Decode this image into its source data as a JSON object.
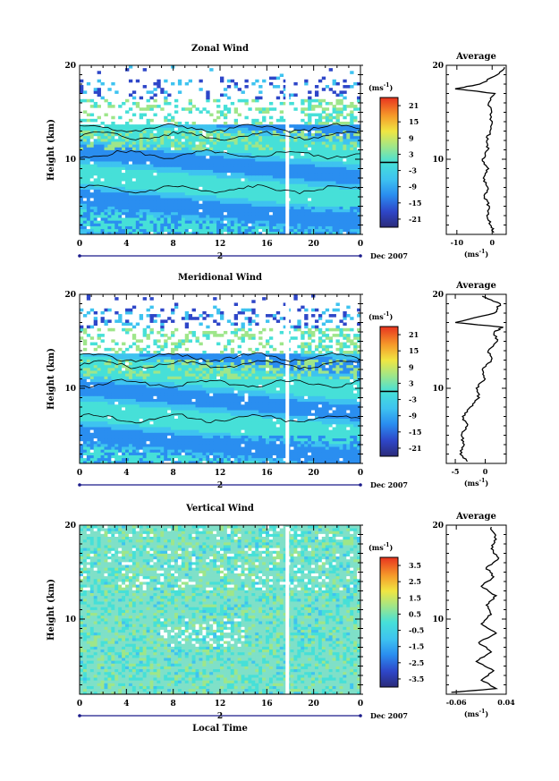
{
  "chart_data": [
    {
      "type": "heatmap",
      "title": "Zonal Wind",
      "ylabel": "Height (km)",
      "ylim": [
        2,
        20
      ],
      "yticks": [
        "20",
        "10"
      ],
      "xticks": [
        "0",
        "4",
        "8",
        "12",
        "16",
        "20",
        "0"
      ],
      "xlim": [
        0,
        24
      ],
      "date_marker": "2",
      "date_label": "Dec 2007",
      "colorbar": {
        "unit": "(ms",
        "unit_exp": "-1",
        "unit_close": ")",
        "ticks": [
          "21",
          "15",
          "9",
          "3",
          "-3",
          "-9",
          "-15",
          "-21"
        ],
        "range": [
          -24,
          24
        ]
      },
      "average": {
        "title": "Average",
        "xticks": [
          "-10",
          "0"
        ],
        "xlim": [
          -13,
          4
        ],
        "xlabel": "(ms",
        "xlabel_exp": "-1",
        "xlabel_close": ")",
        "yticks": [
          "20",
          "10"
        ],
        "profile": [
          {
            "h": 2.2,
            "v": 0.5
          },
          {
            "h": 3,
            "v": -0.5
          },
          {
            "h": 4,
            "v": -1.5
          },
          {
            "h": 5,
            "v": -0.8
          },
          {
            "h": 6,
            "v": -2.2
          },
          {
            "h": 7,
            "v": -1.2
          },
          {
            "h": 8,
            "v": -2.5
          },
          {
            "h": 9,
            "v": -1.0
          },
          {
            "h": 10,
            "v": -2.8
          },
          {
            "h": 11,
            "v": -1.2
          },
          {
            "h": 12,
            "v": -1.5
          },
          {
            "h": 13,
            "v": -0.6
          },
          {
            "h": 14.5,
            "v": -0.2
          },
          {
            "h": 16,
            "v": -1.0
          },
          {
            "h": 17,
            "v": 0.8
          },
          {
            "h": 17.5,
            "v": -10.5
          },
          {
            "h": 18,
            "v": -3.5
          },
          {
            "h": 19,
            "v": 1.5
          },
          {
            "h": 19.8,
            "v": 3.5
          }
        ]
      }
    },
    {
      "type": "heatmap",
      "title": "Meridional Wind",
      "ylabel": "Height (km)",
      "ylim": [
        2,
        20
      ],
      "yticks": [
        "20",
        "10"
      ],
      "xticks": [
        "0",
        "4",
        "8",
        "12",
        "16",
        "20",
        "0"
      ],
      "xlim": [
        0,
        24
      ],
      "date_marker": "2",
      "date_label": "Dec 2007",
      "colorbar": {
        "unit": "(ms",
        "unit_exp": "-1",
        "unit_close": ")",
        "ticks": [
          "21",
          "15",
          "9",
          "3",
          "-3",
          "-9",
          "-15",
          "-21"
        ],
        "range": [
          -24,
          24
        ]
      },
      "average": {
        "title": "Average",
        "xticks": [
          "-5",
          "0"
        ],
        "xlim": [
          -6.5,
          3.5
        ],
        "xlabel": "(ms",
        "xlabel_exp": "-1",
        "xlabel_close": ")",
        "yticks": [
          "20",
          "10"
        ],
        "profile": [
          {
            "h": 2.2,
            "v": -3.0
          },
          {
            "h": 3,
            "v": -4.2
          },
          {
            "h": 4,
            "v": -3.5
          },
          {
            "h": 5,
            "v": -4.0
          },
          {
            "h": 6,
            "v": -3.0
          },
          {
            "h": 7,
            "v": -3.8
          },
          {
            "h": 8,
            "v": -2.5
          },
          {
            "h": 9,
            "v": -1.0
          },
          {
            "h": 10,
            "v": -1.5
          },
          {
            "h": 11,
            "v": 0.0
          },
          {
            "h": 12,
            "v": -0.5
          },
          {
            "h": 13,
            "v": 1.0
          },
          {
            "h": 14,
            "v": 0.5
          },
          {
            "h": 15,
            "v": 2.0
          },
          {
            "h": 16,
            "v": 1.5
          },
          {
            "h": 16.5,
            "v": 3.0
          },
          {
            "h": 17,
            "v": -5.0
          },
          {
            "h": 18,
            "v": 1.5
          },
          {
            "h": 19,
            "v": 2.5
          },
          {
            "h": 19.8,
            "v": -0.5
          }
        ]
      }
    },
    {
      "type": "heatmap",
      "title": "Vertical Wind",
      "ylabel": "Height (km)",
      "ylim": [
        2,
        20
      ],
      "yticks": [
        "20",
        "10"
      ],
      "xticks": [
        "0",
        "4",
        "8",
        "12",
        "16",
        "20",
        "0"
      ],
      "xlim": [
        0,
        24
      ],
      "date_marker": "2",
      "date_label": "Dec 2007",
      "xlabel": "Local Time",
      "colorbar": {
        "unit": "(ms",
        "unit_exp": "-1",
        "unit_close": ")",
        "ticks": [
          "3.5",
          "2.5",
          "1.5",
          "0.5",
          "-0.5",
          "-1.5",
          "-2.5",
          "-3.5"
        ],
        "range": [
          -4,
          4
        ]
      },
      "average": {
        "title": "Average",
        "xticks": [
          "-0.06",
          "0.04"
        ],
        "xlim": [
          -0.08,
          0.04
        ],
        "xlabel": "(ms",
        "xlabel_exp": "-1",
        "xlabel_close": ")",
        "yticks": [
          "20",
          "10"
        ],
        "profile": [
          {
            "h": 2.2,
            "v": -0.07
          },
          {
            "h": 2.6,
            "v": 0.02
          },
          {
            "h": 3.5,
            "v": -0.01
          },
          {
            "h": 4.5,
            "v": 0.015
          },
          {
            "h": 5.5,
            "v": -0.02
          },
          {
            "h": 6.5,
            "v": 0.01
          },
          {
            "h": 7.5,
            "v": -0.015
          },
          {
            "h": 8.5,
            "v": 0.02
          },
          {
            "h": 9.5,
            "v": -0.01
          },
          {
            "h": 10.5,
            "v": 0.01
          },
          {
            "h": 11.5,
            "v": 0.0
          },
          {
            "h": 12.5,
            "v": 0.02
          },
          {
            "h": 13.5,
            "v": -0.01
          },
          {
            "h": 14.5,
            "v": 0.015
          },
          {
            "h": 15.5,
            "v": 0.0
          },
          {
            "h": 16.5,
            "v": 0.025
          },
          {
            "h": 17.5,
            "v": 0.01
          },
          {
            "h": 18.5,
            "v": 0.02
          },
          {
            "h": 19.8,
            "v": 0.01
          }
        ]
      }
    }
  ]
}
